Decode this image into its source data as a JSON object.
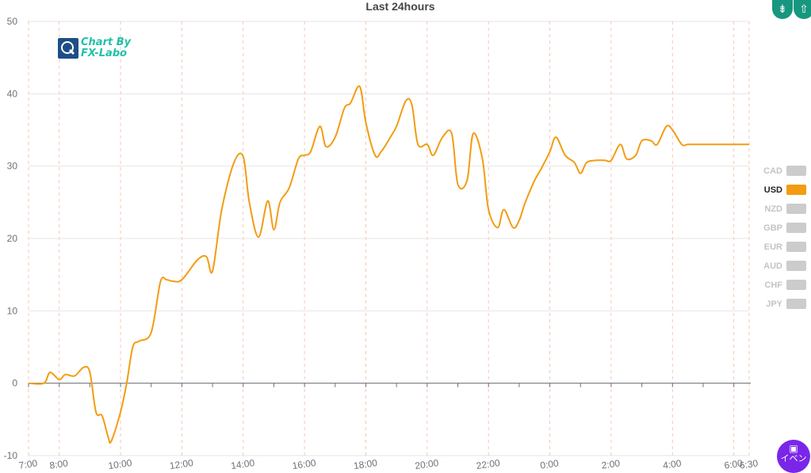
{
  "chart_data": {
    "type": "line",
    "title": "Last 24hours",
    "ylim": [
      -10,
      50
    ],
    "yticks": [
      -10,
      0,
      10,
      20,
      30,
      40,
      50
    ],
    "x_range": [
      "7:00",
      "6:30"
    ],
    "xtick_labels": [
      "7:00",
      "8:00",
      "10:00",
      "12:00",
      "14:00",
      "16:00",
      "18:00",
      "20:00",
      "22:00",
      "0:00",
      "2:00",
      "4:00",
      "6:00",
      "6:30"
    ],
    "grid": {
      "horizontal": true,
      "vertical_dashed": true
    },
    "legend_position": "right",
    "series": [
      {
        "name": "USD",
        "color": "#f39c12",
        "x_hours": [
          0,
          0.5,
          0.7,
          1.0,
          1.2,
          1.5,
          1.8,
          2.0,
          2.2,
          2.4,
          2.6,
          2.7,
          3.0,
          3.2,
          3.4,
          3.6,
          4.0,
          4.3,
          4.5,
          4.7,
          5.0,
          5.5,
          5.8,
          6.0,
          6.3,
          6.7,
          7.0,
          7.2,
          7.5,
          7.8,
          8.0,
          8.2,
          8.5,
          8.8,
          9.0,
          9.2,
          9.5,
          9.7,
          10.0,
          10.3,
          10.5,
          10.8,
          11.0,
          11.3,
          11.5,
          11.8,
          12.0,
          12.3,
          12.5,
          12.7,
          13.0,
          13.2,
          13.5,
          13.8,
          14.0,
          14.3,
          14.5,
          14.8,
          15.0,
          15.3,
          15.5,
          15.8,
          16.0,
          16.2,
          16.5,
          16.7,
          17.0,
          17.2,
          17.5,
          17.8,
          18.0,
          18.2,
          18.5,
          18.8,
          19.0,
          19.3,
          19.5,
          19.8,
          20.0,
          20.3,
          20.5,
          20.8,
          21.0,
          21.3,
          21.5,
          21.7,
          22.0,
          22.3,
          22.5,
          22.7,
          23.0,
          23.2,
          23.4,
          23.5
        ],
        "values": [
          0,
          0,
          1.5,
          0.5,
          1.2,
          1.0,
          2.2,
          1.5,
          -4,
          -4.5,
          -7.5,
          -8,
          -4,
          0,
          5,
          5.8,
          7,
          14,
          14.3,
          14.1,
          14.3,
          17,
          17.5,
          15.5,
          24,
          30.5,
          31.3,
          25,
          20.2,
          25.2,
          21.2,
          25,
          27,
          31,
          31.5,
          32,
          35.5,
          32.7,
          34,
          38,
          38.7,
          41,
          36,
          31.5,
          32,
          34,
          35.5,
          39,
          38.5,
          33,
          33,
          31.5,
          34,
          34.5,
          27.5,
          28,
          34.5,
          31,
          24,
          21.5,
          24,
          21.5,
          22.5,
          25,
          28,
          29.5,
          32,
          34,
          31.5,
          30.5,
          29,
          30.5,
          30.8,
          30.8,
          30.8,
          33,
          31,
          31.5,
          33.5,
          33.5,
          33,
          35.5,
          35,
          33,
          33,
          33,
          33,
          33,
          33,
          33,
          33,
          33,
          33,
          33
        ]
      }
    ]
  },
  "legend": [
    {
      "label": "CAD",
      "active": false
    },
    {
      "label": "USD",
      "active": true
    },
    {
      "label": "NZD",
      "active": false
    },
    {
      "label": "GBP",
      "active": false
    },
    {
      "label": "EUR",
      "active": false
    },
    {
      "label": "AUD",
      "active": false
    },
    {
      "label": "CHF",
      "active": false
    },
    {
      "label": "JPY",
      "active": false
    }
  ],
  "logo": {
    "line1": "Chart By",
    "line2": "FX-Labo"
  },
  "controls": {
    "collapse_icon": "collapse-vertical-icon",
    "expand_icon": "expand-vertical-icon"
  },
  "event_button": {
    "icon": "calendar-icon",
    "label": "イベン"
  }
}
